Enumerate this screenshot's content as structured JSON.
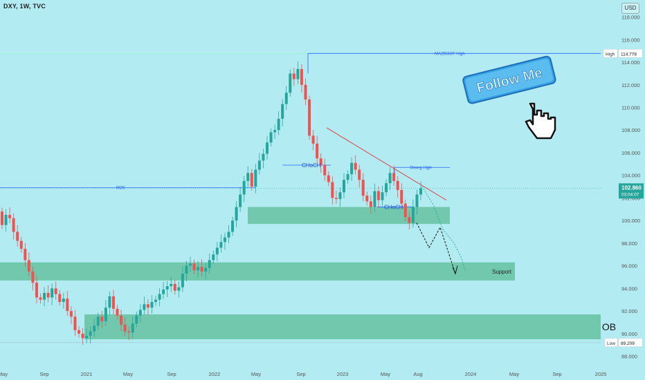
{
  "header": {
    "symbol": "DXY, 1W, TVC",
    "currency": "USD"
  },
  "colors": {
    "background": "#b2ebf2",
    "up": "#26a69a",
    "down": "#ef5350",
    "zone": "#66c2a0",
    "level_line": "#2962ff",
    "trend_line": "#e04444"
  },
  "chart_data": {
    "type": "candlestick",
    "title": "",
    "xlabel": "",
    "ylabel": "",
    "ylim": [
      87,
      119.5
    ],
    "y_ticks": [
      88,
      90,
      92,
      94,
      96,
      98,
      100,
      102,
      104,
      106,
      108,
      110,
      112,
      114,
      116,
      118
    ],
    "x_ticks": [
      "May",
      "Sep",
      "2021",
      "May",
      "Sep",
      "2022",
      "May",
      "Sep",
      "2023",
      "May",
      "Aug",
      "2024",
      "May",
      "Sep",
      "2025"
    ],
    "last_price": "102.860",
    "countdown": "03:04:07",
    "high": {
      "label": "High",
      "value": "114.778"
    },
    "low": {
      "label": "Low",
      "value": "89.209"
    },
    "levels": [
      {
        "name": "MAZBOOT High",
        "value": 114.778
      },
      {
        "name": "BOS",
        "value": 102.9
      },
      {
        "name": "Strong High",
        "value": 104.7
      }
    ],
    "zones": [
      {
        "name": "",
        "top": 101.2,
        "bottom": 99.7
      },
      {
        "name": "Support",
        "top": 96.3,
        "bottom": 94.7
      },
      {
        "name": "OB",
        "top": 91.7,
        "bottom": 89.5
      }
    ],
    "annotations": [
      "CHoCH",
      "CHoCH",
      "Strong High",
      "BOS",
      "MAZBOOT High",
      "Support",
      "OB"
    ],
    "series_close_path": [
      99.6,
      100.5,
      100.2,
      99.0,
      98.2,
      97.5,
      96.5,
      95.5,
      94.5,
      93.2,
      93.0,
      93.6,
      93.2,
      94.0,
      93.5,
      92.8,
      93.1,
      92.0,
      91.5,
      90.3,
      90.0,
      89.6,
      89.8,
      90.2,
      90.7,
      91.5,
      91.1,
      92.3,
      93.3,
      92.2,
      91.6,
      90.8,
      90.2,
      90.1,
      90.9,
      91.6,
      92.1,
      92.6,
      92.3,
      92.8,
      93.0,
      93.5,
      93.9,
      94.2,
      94.4,
      93.8,
      94.1,
      95.3,
      96.0,
      96.2,
      95.6,
      95.9,
      95.5,
      95.8,
      96.5,
      97.0,
      97.6,
      98.1,
      98.5,
      99.0,
      100.0,
      101.2,
      102.3,
      103.5,
      104.2,
      103.0,
      104.5,
      105.3,
      105.9,
      106.9,
      107.8,
      108.0,
      109.0,
      110.3,
      111.3,
      113.0,
      112.5,
      113.4,
      112.0,
      110.7,
      107.5,
      106.8,
      105.5,
      104.9,
      104.0,
      103.4,
      102.0,
      101.9,
      102.5,
      103.6,
      104.1,
      105.1,
      104.5,
      103.6,
      102.2,
      101.7,
      101.2,
      102.6,
      101.8,
      102.5,
      103.3,
      104.2,
      103.5,
      102.7,
      101.5,
      100.3,
      99.8,
      101.2,
      102.3,
      102.86
    ]
  },
  "arrows": {
    "label": "projection"
  },
  "promo": {
    "text": "Follow Me"
  }
}
